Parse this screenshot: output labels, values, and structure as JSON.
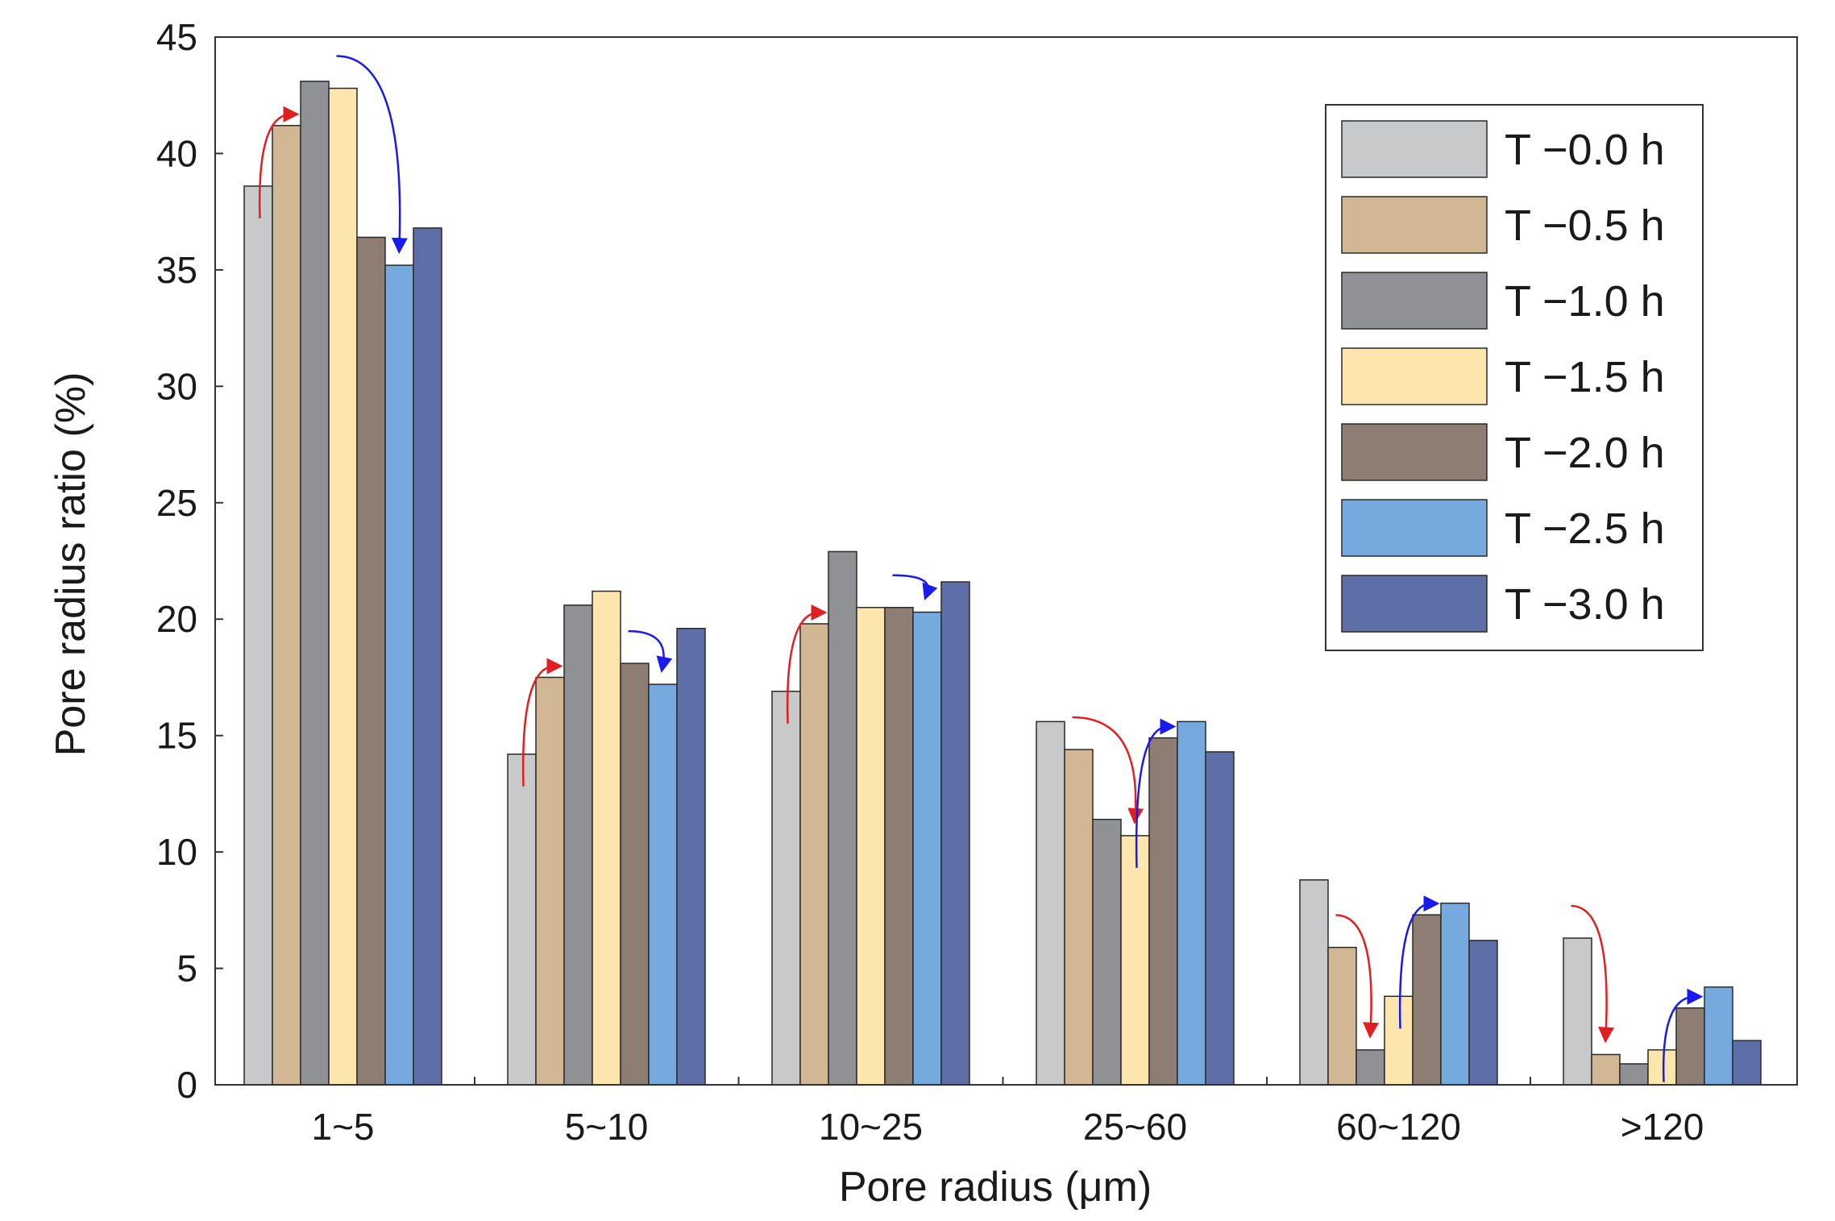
{
  "chart_data": {
    "type": "bar",
    "title": "",
    "xlabel": "Pore radius (μm)",
    "ylabel": "Pore radius ratio (%)",
    "ylim": [
      0,
      45
    ],
    "yticks": [
      0,
      5,
      10,
      15,
      20,
      25,
      30,
      35,
      40,
      45
    ],
    "categories": [
      "1~5",
      "5~10",
      "10~25",
      "25~60",
      "60~120",
      ">120"
    ],
    "legend_position": "top-right",
    "grid": false,
    "series": [
      {
        "name": "T −0.0 h",
        "color": "#c8c9cb",
        "values": [
          38.6,
          14.2,
          16.9,
          15.6,
          8.8,
          6.3
        ]
      },
      {
        "name": "T −0.5 h",
        "color": "#d2b795",
        "values": [
          41.2,
          17.5,
          19.8,
          14.4,
          5.9,
          1.3
        ]
      },
      {
        "name": "T −1.0 h",
        "color": "#8f9194",
        "values": [
          43.1,
          20.6,
          22.9,
          11.4,
          1.5,
          0.9
        ]
      },
      {
        "name": "T −1.5 h",
        "color": "#fce6ad",
        "values": [
          42.8,
          21.2,
          20.5,
          10.7,
          3.8,
          1.5
        ]
      },
      {
        "name": "T −2.0 h",
        "color": "#8e7d72",
        "values": [
          36.4,
          18.1,
          20.5,
          14.9,
          7.3,
          3.3
        ]
      },
      {
        "name": "T −2.5 h",
        "color": "#76aadf",
        "values": [
          35.2,
          17.2,
          20.3,
          15.6,
          7.8,
          4.2
        ]
      },
      {
        "name": "T −3.0 h",
        "color": "#5e6fa8",
        "values": [
          36.8,
          19.6,
          21.6,
          14.3,
          6.2,
          1.9
        ]
      }
    ],
    "trend_arrows": [
      {
        "category": "1~5",
        "from_series": 0,
        "to_series": 1,
        "color": "#e02020"
      },
      {
        "category": "1~5",
        "from_series": 3,
        "to_series": 5,
        "color": "#1a1aee"
      },
      {
        "category": "5~10",
        "from_series": 0,
        "to_series": 1,
        "color": "#e02020"
      },
      {
        "category": "5~10",
        "from_series": 4,
        "to_series": 5,
        "color": "#1a1aee"
      },
      {
        "category": "10~25",
        "from_series": 0,
        "to_series": 1,
        "color": "#e02020"
      },
      {
        "category": "10~25",
        "from_series": 4,
        "to_series": 5,
        "color": "#1a1aee"
      },
      {
        "category": "25~60",
        "from_series": 1,
        "to_series": 3,
        "color": "#e02020"
      },
      {
        "category": "25~60",
        "from_series": 3,
        "to_series": 4,
        "color": "#1a1aee"
      },
      {
        "category": "60~120",
        "from_series": 1,
        "to_series": 2,
        "color": "#e02020"
      },
      {
        "category": "60~120",
        "from_series": 3,
        "to_series": 4,
        "color": "#1a1aee"
      },
      {
        "category": ">120",
        "from_series": 0,
        "to_series": 1,
        "color": "#e02020"
      },
      {
        "category": ">120",
        "from_series": 3,
        "to_series": 4,
        "color": "#1a1aee"
      }
    ]
  }
}
